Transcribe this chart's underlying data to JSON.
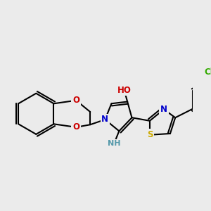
{
  "background_color": "#ebebeb",
  "bond_color": "#000000",
  "bond_width": 1.5,
  "atom_colors": {
    "N": "#0000cc",
    "O": "#cc0000",
    "S": "#ccaa00",
    "Cl": "#33aa00",
    "C": "#000000",
    "H": "#000000",
    "HO_color": "#cc0000",
    "NH_color": "#5599aa",
    "N_blue": "#0000cc"
  },
  "font_size": 8.5
}
